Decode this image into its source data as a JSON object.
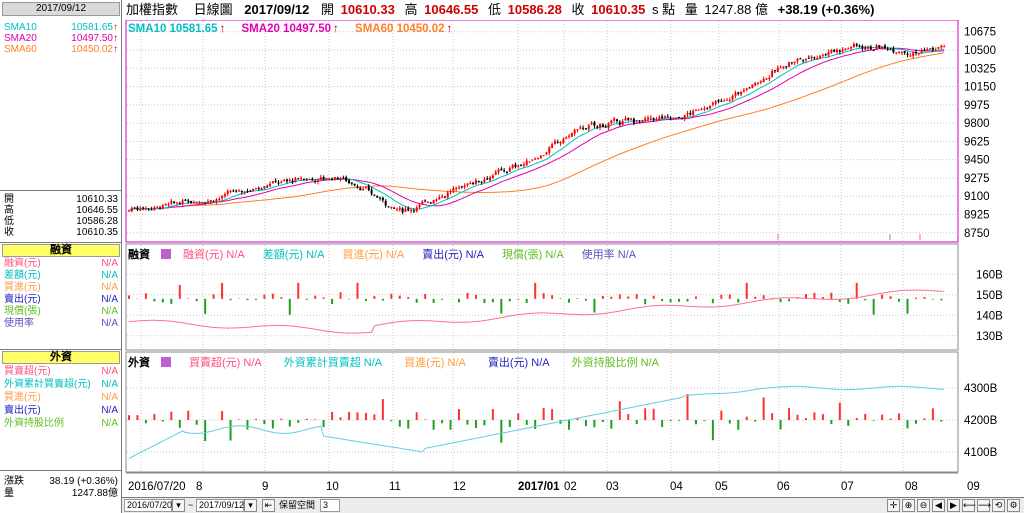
{
  "header": {
    "name": "加權指數",
    "period": "日線圖",
    "date": "2017/09/12",
    "open_label": "開",
    "open": "10610.33",
    "high_label": "高",
    "high": "10646.55",
    "low_label": "低",
    "low": "10586.28",
    "close_label": "收",
    "close": "10610.35",
    "unit": "s 點",
    "volume_label": "量",
    "volume": "1247.88 億",
    "change": "+38.19 (+0.36%)"
  },
  "left_panel": {
    "date": "2017/09/12",
    "sma_rows": [
      {
        "label": "SMA10",
        "value": "10581.65",
        "color": "#00bfbf"
      },
      {
        "label": "SMA20",
        "value": "10497.50",
        "color": "#e000b0"
      },
      {
        "label": "SMA60",
        "value": "10450.02",
        "color": "#ff7f27"
      }
    ],
    "ohlc_rows": [
      {
        "label": "開",
        "value": "10610.33"
      },
      {
        "label": "高",
        "value": "10646.55"
      },
      {
        "label": "低",
        "value": "10586.28"
      },
      {
        "label": "收",
        "value": "10610.35"
      }
    ],
    "margin_header": "融資",
    "margin_rows": [
      {
        "label": "融資(元)",
        "value": "N/A",
        "color": "#ff4f7f"
      },
      {
        "label": "差額(元)",
        "value": "N/A",
        "color": "#00bfbf"
      },
      {
        "label": "買進(元)",
        "value": "N/A",
        "color": "#ff9f3f"
      },
      {
        "label": "賣出(元)",
        "value": "N/A",
        "color": "#1f1fbf"
      },
      {
        "label": "現償(張)",
        "value": "N/A",
        "color": "#5fbf1f"
      },
      {
        "label": "使用率",
        "value": "N/A",
        "color": "#5f4fbf"
      }
    ],
    "foreign_header": "外資",
    "foreign_rows": [
      {
        "label": "買賣超(元)",
        "value": "N/A",
        "color": "#ff4f7f"
      },
      {
        "label": "外資累計買賣超(元)",
        "value": "N/A",
        "color": "#00bfbf"
      },
      {
        "label": "買進(元)",
        "value": "N/A",
        "color": "#ff9f3f"
      },
      {
        "label": "賣出(元)",
        "value": "N/A",
        "color": "#1f1fbf"
      },
      {
        "label": "外資持股比例",
        "value": "N/A",
        "color": "#5fbf1f"
      }
    ],
    "change_label": "漲跌",
    "change_value": "38.19 (+0.36%)",
    "volume_label": "量",
    "volume_value": "1247.88億"
  },
  "price_panel": {
    "legend": [
      {
        "label": "SMA10",
        "value": "10581.65",
        "color": "#00bfbf"
      },
      {
        "label": "SMA20",
        "value": "10497.50",
        "color": "#e000b0"
      },
      {
        "label": "SMA60",
        "value": "10450.02",
        "color": "#ff7f27"
      }
    ],
    "up_arrow": "↑",
    "y_ticks": [
      "10675",
      "10500",
      "10325",
      "10150",
      "9975",
      "9800",
      "9625",
      "9450",
      "9275",
      "9100",
      "8925",
      "8750"
    ]
  },
  "margin_panel": {
    "title": "融資",
    "legend": [
      {
        "label": "融資(元)",
        "value": "N/A",
        "color": "#ff4f7f"
      },
      {
        "label": "差額(元)",
        "value": "N/A",
        "color": "#00bfbf"
      },
      {
        "label": "買進(元)",
        "value": "N/A",
        "color": "#ff9f3f"
      },
      {
        "label": "賣出(元)",
        "value": "N/A",
        "color": "#1f1fbf"
      },
      {
        "label": "現償(張)",
        "value": "N/A",
        "color": "#5fbf1f"
      },
      {
        "label": "使用率",
        "value": "N/A",
        "color": "#5f4fbf"
      }
    ],
    "y_ticks": [
      "160B",
      "150B",
      "140B",
      "130B"
    ]
  },
  "foreign_panel": {
    "title": "外資",
    "legend": [
      {
        "label": "買賣超(元)",
        "value": "N/A",
        "color": "#ff4f7f"
      },
      {
        "label": "外資累計買賣超",
        "value": "N/A",
        "color": "#00bfbf"
      },
      {
        "label": "買進(元)",
        "value": "N/A",
        "color": "#ff9f3f"
      },
      {
        "label": "賣出(元)",
        "value": "N/A",
        "color": "#1f1fbf"
      },
      {
        "label": "外資持股比例",
        "value": "N/A",
        "color": "#5fbf1f"
      }
    ],
    "y_ticks": [
      "4300B",
      "4200B",
      "4100B"
    ]
  },
  "x_axis": {
    "labels": [
      "2016/07/20",
      "8",
      "9",
      "10",
      "11",
      "12",
      "2017/01",
      "02",
      "03",
      "04",
      "05",
      "06",
      "07",
      "08",
      "09"
    ]
  },
  "bottom_bar": {
    "from_date": "2016/07/20",
    "tilde": "~",
    "to_date": "2017/09/12",
    "reserve_label": "保留空間",
    "reserve_value": "3"
  },
  "colors": {
    "up": "#ff0000",
    "down": "#000000",
    "sma10": "#00bfbf",
    "sma20": "#e000b0",
    "sma60": "#ff7f27",
    "margin_line": "#ff6f8f",
    "foreign_line": "#5fd0e0",
    "bar_up": "#ff3030",
    "bar_down": "#1f9f1f",
    "panel_border": "#d000d0"
  },
  "chart_data": {
    "type": "candlestick",
    "title": "加權指數 日線圖",
    "xlabel": "",
    "ylabel": "點",
    "ylim": [
      8700,
      10730
    ],
    "dates_range": [
      "2016/07/20",
      "2017/09/12"
    ],
    "grid": true,
    "monthly_closes": {
      "categories": [
        "2016/07",
        "2016/08",
        "2016/09",
        "2016/10",
        "2016/11",
        "2016/12",
        "2017/01",
        "2017/02",
        "2017/03",
        "2017/04",
        "2017/05",
        "2017/06",
        "2017/07",
        "2017/08",
        "2017/09"
      ],
      "values": [
        8990,
        9070,
        9240,
        9290,
        8950,
        9220,
        9440,
        9750,
        9810,
        9870,
        10040,
        10390,
        10550,
        10480,
        10610
      ]
    },
    "series": [
      {
        "name": "SMA10",
        "last": 10581.65
      },
      {
        "name": "SMA20",
        "last": 10497.5
      },
      {
        "name": "SMA60",
        "last": 10450.02
      }
    ],
    "last_candle": {
      "date": "2017/09/12",
      "open": 10610.33,
      "high": 10646.55,
      "low": 10586.28,
      "close": 10610.35,
      "volume_b": 1247.88
    },
    "margin_ylim": [
      125,
      165
    ],
    "foreign_ylim": [
      4050,
      4350
    ]
  }
}
